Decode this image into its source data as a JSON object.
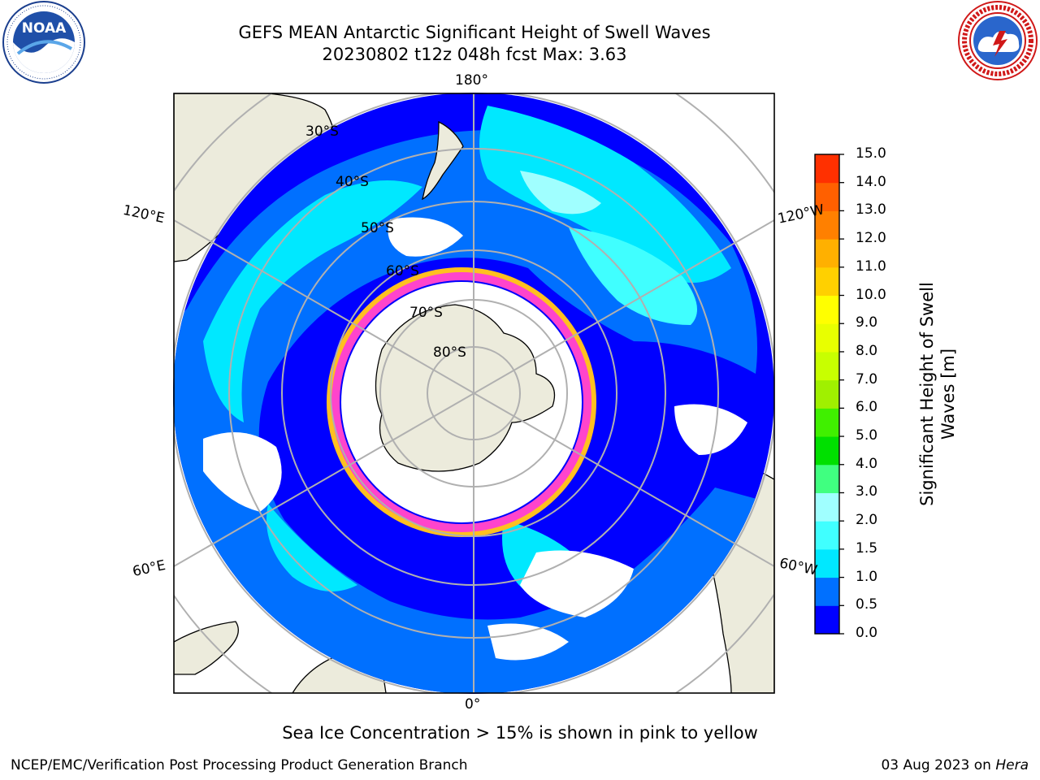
{
  "header": {
    "title_line1": "GEFS MEAN Antarctic Significant Height of Swell Waves",
    "title_line2": "20230802 t12z 048h fcst   Max: 3.63"
  },
  "logos": {
    "left": {
      "name": "noaa-logo",
      "text": "NOAA",
      "ring_text": "NATIONAL OCEANIC AND ATMOSPHERIC ADMINISTRATION · U.S. DEPARTMENT OF COMMERCE"
    },
    "right": {
      "name": "nws-logo",
      "ring_text": "NATIONAL WEATHER SERVICE"
    }
  },
  "map": {
    "projection": "south polar stereographic",
    "longitude_labels": {
      "top": "180°",
      "upper_left": "120°E",
      "upper_right": "120°W",
      "lower_left": "60°E",
      "lower_right": "60°W",
      "bottom": "0°"
    },
    "latitude_labels": [
      "30°S",
      "40°S",
      "50°S",
      "60°S",
      "70°S",
      "80°S"
    ],
    "colors": {
      "land": "#ecebdc",
      "ocean_deep": "#0000ff",
      "sea_ice_edge": "#ff44cc",
      "ice_yellow": "#ffc020",
      "no_data": "#ffffff",
      "grid": "#b0b0b0"
    }
  },
  "colorbar": {
    "title": "Significant Height of Swell Waves [m]",
    "ticks": [
      "0.0",
      "0.5",
      "1.0",
      "1.5",
      "2.0",
      "3.0",
      "4.0",
      "5.0",
      "6.0",
      "7.0",
      "8.0",
      "9.0",
      "10.0",
      "11.0",
      "12.0",
      "13.0",
      "14.0",
      "15.0"
    ],
    "colors": [
      "#0000ff",
      "#0070ff",
      "#00e8ff",
      "#40ffff",
      "#a0ffff",
      "#40ff80",
      "#00e000",
      "#40f000",
      "#a0f000",
      "#c8ff00",
      "#e8ff00",
      "#ffff00",
      "#ffd000",
      "#ffb000",
      "#ff8000",
      "#ff6000",
      "#ff3000"
    ]
  },
  "footer": {
    "note": "Sea Ice Concentration > 15% is shown in pink to yellow",
    "credit": "NCEP/EMC/Verification Post Processing Product Generation Branch",
    "date": "03 Aug 2023 on",
    "host": "Hera"
  }
}
